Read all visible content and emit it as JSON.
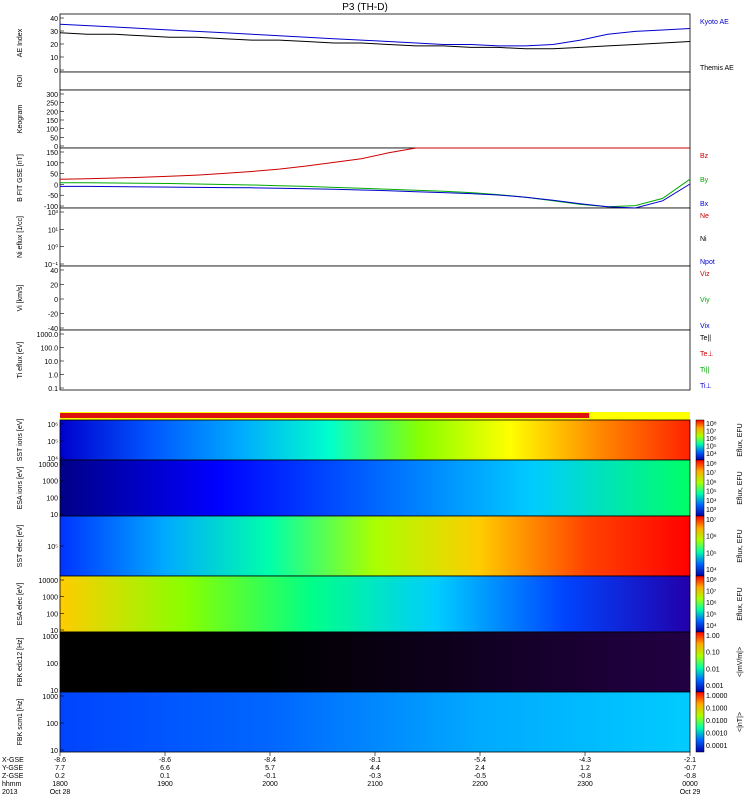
{
  "chart_data": {
    "type": "multi-panel-timeseries",
    "title": "P3 (TH-D)",
    "panels": [
      {
        "id": "ae",
        "ylabel": "AE Index",
        "yticks": [
          "40",
          "30",
          "20",
          "10",
          "0"
        ],
        "legend": [
          {
            "label": "Kyoto AE",
            "color": "#0000cc"
          },
          {
            "label": "Themis AE",
            "color": "#000000"
          }
        ]
      },
      {
        "id": "roi",
        "ylabel": "ROI",
        "yticks": [],
        "legend": []
      },
      {
        "id": "keogram",
        "ylabel": "Keogram",
        "yticks": [
          "300",
          "250",
          "200",
          "150",
          "100",
          "50",
          "0"
        ],
        "legend": []
      },
      {
        "id": "bfield",
        "ylabel": "B FIT GSE [nT]",
        "yticks": [
          "150",
          "100",
          "50",
          "0",
          "-50",
          "-100"
        ],
        "legend": [
          {
            "label": "Bz",
            "color": "#cc0000"
          },
          {
            "label": "By",
            "color": "#00aa00"
          },
          {
            "label": "Bx",
            "color": "#0000cc"
          }
        ]
      },
      {
        "id": "density",
        "ylabel": "Ni eflux [1/cc]",
        "yticks": [
          "10³",
          "10¹",
          "10⁰",
          "10⁻¹"
        ],
        "legend": [
          {
            "label": "Ne",
            "color": "#cc0000"
          },
          {
            "label": "Ni",
            "color": "#000000"
          },
          {
            "label": "Npot",
            "color": "#0000cc"
          }
        ]
      },
      {
        "id": "velocity",
        "ylabel": "Vi [km/s]",
        "yticks": [
          "40",
          "20",
          "0",
          "-20",
          "-40"
        ],
        "legend": [
          {
            "label": "Viz",
            "color": "#cc0000"
          },
          {
            "label": "Viy",
            "color": "#00aa00"
          },
          {
            "label": "Vix",
            "color": "#0000cc"
          }
        ]
      },
      {
        "id": "temperature",
        "ylabel": "Ti eflux [eV]",
        "yticks": [
          "1000.0",
          "100.0",
          "10.0",
          "1.0",
          "0.1"
        ],
        "legend": [
          {
            "label": "Te||",
            "color": "#000000"
          },
          {
            "label": "Te⊥",
            "color": "#cc0000"
          },
          {
            "label": "Ti||",
            "color": "#00aa00"
          },
          {
            "label": "Ti⊥",
            "color": "#0000cc"
          }
        ]
      },
      {
        "id": "sst_i",
        "ylabel": "SST ions [eV]",
        "yticks": [
          "10⁶",
          "10⁵",
          "10⁴"
        ],
        "cbar": "Eflux, EFU",
        "cticks": [
          "10⁸",
          "10⁷",
          "10⁶",
          "10⁵",
          "10⁴"
        ]
      },
      {
        "id": "esa_i",
        "ylabel": "ESA ions [eV]",
        "yticks": [
          "10000",
          "1000",
          "100",
          "10"
        ],
        "cbar": "Eflux, EFU",
        "cticks": [
          "10⁸",
          "10⁷",
          "10⁶",
          "10⁵",
          "10⁴",
          "10³"
        ]
      },
      {
        "id": "sst_e",
        "ylabel": "SST elec [eV]",
        "yticks": [
          "10⁵"
        ],
        "cbar": "Eflux, EFU",
        "cticks": [
          "10⁷",
          "10⁶",
          "10⁵",
          "10⁴"
        ]
      },
      {
        "id": "esa_e",
        "ylabel": "ESA elec [eV]",
        "yticks": [
          "10000",
          "1000",
          "100",
          "10"
        ],
        "cbar": "Eflux, EFU",
        "cticks": [
          "10⁸",
          "10⁷",
          "10⁶",
          "10⁵",
          "10⁴"
        ]
      },
      {
        "id": "fbk1",
        "ylabel": "FBK edc12 [Hz]",
        "yticks": [
          "1000",
          "100",
          "10"
        ],
        "cbar": "<|mV/m|>",
        "cticks": [
          "1.00",
          "0.10",
          "0.01",
          "0.001"
        ]
      },
      {
        "id": "fbk2",
        "ylabel": "FBK scm1 [Hz]",
        "yticks": [
          "1000",
          "100",
          "10"
        ],
        "cbar": "<|nT|>",
        "cticks": [
          "1.0000",
          "0.1000",
          "0.0100",
          "0.0010",
          "0.0001"
        ]
      }
    ],
    "time_axis": {
      "row_labels": [
        "X-GSE",
        "Y-GSE",
        "Z-GSE",
        "hhmm",
        "2013"
      ],
      "ticks": [
        {
          "vals": [
            "-8.6",
            "7.7",
            "0.2",
            "1800",
            "Oct 28"
          ]
        },
        {
          "vals": [
            "-8.6",
            "6.6",
            "0.1",
            "1900",
            ""
          ]
        },
        {
          "vals": [
            "-8.4",
            "5.7",
            "-0.1",
            "2000",
            ""
          ]
        },
        {
          "vals": [
            "-8.1",
            "4.4",
            "-0.3",
            "2100",
            ""
          ]
        },
        {
          "vals": [
            "-5.4",
            "2.4",
            "-0.5",
            "2200",
            ""
          ]
        },
        {
          "vals": [
            "-4.3",
            "1.2",
            "-0.8",
            "2300",
            ""
          ]
        },
        {
          "vals": [
            "-2.1",
            "-0.7",
            "-0.8",
            "0000",
            "Oct 29"
          ]
        }
      ]
    },
    "ae_series": {
      "kyoto_ae": [
        33,
        32,
        31,
        30,
        29,
        28,
        27,
        26,
        25,
        24,
        23,
        22,
        21,
        20,
        19,
        19,
        18,
        18,
        19,
        22,
        26,
        28,
        29,
        30
      ],
      "themis_ae": [
        27,
        26,
        26,
        25,
        24,
        24,
        23,
        22,
        22,
        21,
        20,
        20,
        19,
        18,
        18,
        17,
        17,
        16,
        16,
        17,
        18,
        19,
        20,
        21
      ]
    },
    "b_series": {
      "bz": [
        20,
        22,
        25,
        28,
        32,
        37,
        44,
        52,
        62,
        75,
        90,
        105,
        130,
        150,
        150,
        150,
        150,
        150,
        150,
        150,
        150,
        150,
        150,
        150
      ],
      "by": [
        5,
        5,
        4,
        3,
        2,
        0,
        -2,
        -4,
        -7,
        -10,
        -14,
        -18,
        -22,
        -26,
        -30,
        -36,
        -44,
        -55,
        -70,
        -85,
        -95,
        -90,
        -60,
        20
      ],
      "bx": [
        -10,
        -10,
        -11,
        -12,
        -13,
        -14,
        -15,
        -16,
        -18,
        -20,
        -22,
        -25,
        -28,
        -32,
        -36,
        -40,
        -46,
        -55,
        -68,
        -82,
        -95,
        -100,
        -70,
        0
      ]
    }
  }
}
